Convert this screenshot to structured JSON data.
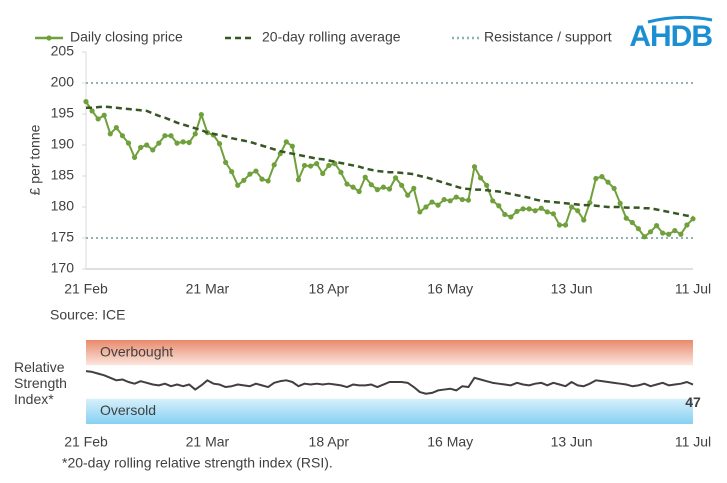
{
  "logo": "AHDB",
  "source": "Source: ICE",
  "footnote": "*20-day rolling relative strength index (RSI).",
  "chart_data": [
    {
      "type": "line",
      "ylabel": "£ per tonne",
      "categories": [
        "21 Feb",
        null,
        null,
        null,
        null,
        null,
        null,
        null,
        null,
        null,
        null,
        null,
        null,
        null,
        null,
        null,
        null,
        null,
        null,
        null,
        "21 Mar",
        null,
        null,
        null,
        null,
        null,
        null,
        null,
        null,
        null,
        null,
        null,
        null,
        null,
        null,
        null,
        null,
        null,
        null,
        null,
        "18 Apr",
        null,
        null,
        null,
        null,
        null,
        null,
        null,
        null,
        null,
        null,
        null,
        null,
        null,
        null,
        null,
        null,
        null,
        null,
        null,
        "16 May",
        null,
        null,
        null,
        null,
        null,
        null,
        null,
        null,
        null,
        null,
        null,
        null,
        null,
        null,
        null,
        null,
        null,
        null,
        null,
        "13 Jun",
        null,
        null,
        null,
        null,
        null,
        null,
        null,
        null,
        null,
        null,
        null,
        null,
        null,
        null,
        null,
        null,
        null,
        null,
        null,
        "11 Jul"
      ],
      "ylim": [
        170,
        205
      ],
      "yticks": [
        170,
        175,
        180,
        185,
        190,
        195,
        200,
        205
      ],
      "grid": false,
      "series": [
        {
          "name": "Daily closing price",
          "color": "#70a03c",
          "line_style": "solid",
          "markers": true,
          "values": [
            197.0,
            195.5,
            194.2,
            194.8,
            191.8,
            192.8,
            191.5,
            190.3,
            188.0,
            189.6,
            190.0,
            189.2,
            190.3,
            191.5,
            191.5,
            190.3,
            190.5,
            190.4,
            191.8,
            194.9,
            192.0,
            191.6,
            190.2,
            187.2,
            185.7,
            183.5,
            184.3,
            185.3,
            185.8,
            184.5,
            184.2,
            186.8,
            188.6,
            190.5,
            189.8,
            184.4,
            186.7,
            186.6,
            187.0,
            185.4,
            186.7,
            187.0,
            185.6,
            183.7,
            183.2,
            182.5,
            184.8,
            183.6,
            182.8,
            183.2,
            182.9,
            184.7,
            183.5,
            181.9,
            183.0,
            179.2,
            180.0,
            180.8,
            180.3,
            181.2,
            181.0,
            181.6,
            181.2,
            181.1,
            186.5,
            184.7,
            183.5,
            181.0,
            180.2,
            178.8,
            178.4,
            179.3,
            179.7,
            179.7,
            179.4,
            179.8,
            179.2,
            178.9,
            177.1,
            177.1,
            180.0,
            179.4,
            177.9,
            180.7,
            184.6,
            184.9,
            184.0,
            183.0,
            180.6,
            178.2,
            177.5,
            176.5,
            175.2,
            176.0,
            177.0,
            175.8,
            175.6,
            176.2,
            175.6,
            177.1,
            178.1
          ]
        },
        {
          "name": "20-day rolling average",
          "color": "#375623",
          "line_style": "dashed",
          "markers": false,
          "values": [
            196.0,
            196.0,
            196.1,
            196.2,
            196.1,
            196.0,
            195.9,
            195.8,
            195.7,
            195.6,
            195.5,
            195.1,
            194.7,
            194.4,
            194.0,
            193.6,
            193.3,
            193.0,
            192.7,
            192.4,
            192.0,
            191.8,
            191.6,
            191.4,
            191.1,
            190.9,
            190.7,
            190.5,
            190.2,
            189.9,
            189.6,
            189.3,
            189.0,
            188.8,
            188.6,
            188.4,
            188.2,
            188.0,
            187.8,
            187.7,
            187.5,
            187.3,
            187.1,
            186.9,
            186.7,
            186.5,
            186.2,
            186.0,
            185.8,
            185.7,
            185.6,
            185.6,
            185.5,
            185.4,
            185.3,
            185.0,
            184.8,
            184.5,
            184.2,
            183.9,
            183.6,
            183.3,
            183.0,
            182.9,
            182.8,
            182.8,
            182.7,
            182.6,
            182.5,
            182.3,
            182.1,
            181.9,
            181.7,
            181.5,
            181.2,
            181.0,
            180.9,
            180.8,
            180.7,
            180.6,
            180.5,
            180.4,
            180.3,
            180.3,
            180.2,
            180.1,
            180.0,
            180.0,
            180.0,
            179.9,
            179.9,
            179.9,
            179.8,
            179.8,
            179.6,
            179.4,
            179.2,
            179.0,
            178.8,
            178.6,
            178.5
          ]
        }
      ],
      "reference_lines": {
        "name": "Resistance / support",
        "color": "#8fb3b3",
        "values": [
          200,
          175
        ]
      }
    },
    {
      "type": "line",
      "ylabel": "Relative Strength Index*",
      "categories": [
        "21 Feb",
        null,
        null,
        null,
        null,
        null,
        null,
        null,
        null,
        null,
        null,
        null,
        null,
        null,
        null,
        null,
        null,
        null,
        null,
        null,
        "21 Mar",
        null,
        null,
        null,
        null,
        null,
        null,
        null,
        null,
        null,
        null,
        null,
        null,
        null,
        null,
        null,
        null,
        null,
        null,
        null,
        "18 Apr",
        null,
        null,
        null,
        null,
        null,
        null,
        null,
        null,
        null,
        null,
        null,
        null,
        null,
        null,
        null,
        null,
        null,
        null,
        null,
        "16 May",
        null,
        null,
        null,
        null,
        null,
        null,
        null,
        null,
        null,
        null,
        null,
        null,
        null,
        null,
        null,
        null,
        null,
        null,
        null,
        "13 Jun",
        null,
        null,
        null,
        null,
        null,
        null,
        null,
        null,
        null,
        null,
        null,
        null,
        null,
        null,
        null,
        null,
        null,
        null,
        null,
        "11 Jul"
      ],
      "ylim": [
        0,
        100
      ],
      "bands": [
        {
          "label": "Overbought",
          "range": [
            70,
            100
          ],
          "color": "#e9896b",
          "color_end": "#fbe6de"
        },
        {
          "label": "Oversold",
          "range": [
            0,
            30
          ],
          "color": "#d6f0fb",
          "color_end": "#86d0f2"
        }
      ],
      "label_last": true,
      "series": [
        {
          "color": "#404040",
          "line_style": "solid",
          "markers": false,
          "values": [
            63,
            62,
            60,
            58,
            55,
            52,
            53,
            50,
            48,
            51,
            49,
            47,
            46,
            48,
            45,
            47,
            45,
            47,
            41,
            46,
            52,
            48,
            47,
            44,
            45,
            47,
            46,
            45,
            48,
            46,
            44,
            49,
            51,
            52,
            50,
            45,
            48,
            47,
            48,
            47,
            48,
            47,
            46,
            44,
            47,
            46,
            46,
            47,
            44,
            47,
            50,
            50,
            50,
            49,
            44,
            38,
            36,
            37,
            40,
            41,
            42,
            40,
            45,
            44,
            55,
            53,
            51,
            49,
            48,
            47,
            46,
            49,
            47,
            46,
            48,
            49,
            46,
            49,
            47,
            45,
            50,
            46,
            45,
            48,
            52,
            51,
            50,
            49,
            48,
            47,
            45,
            46,
            48,
            45,
            47,
            49,
            46,
            47,
            48,
            50,
            47
          ]
        }
      ]
    }
  ]
}
